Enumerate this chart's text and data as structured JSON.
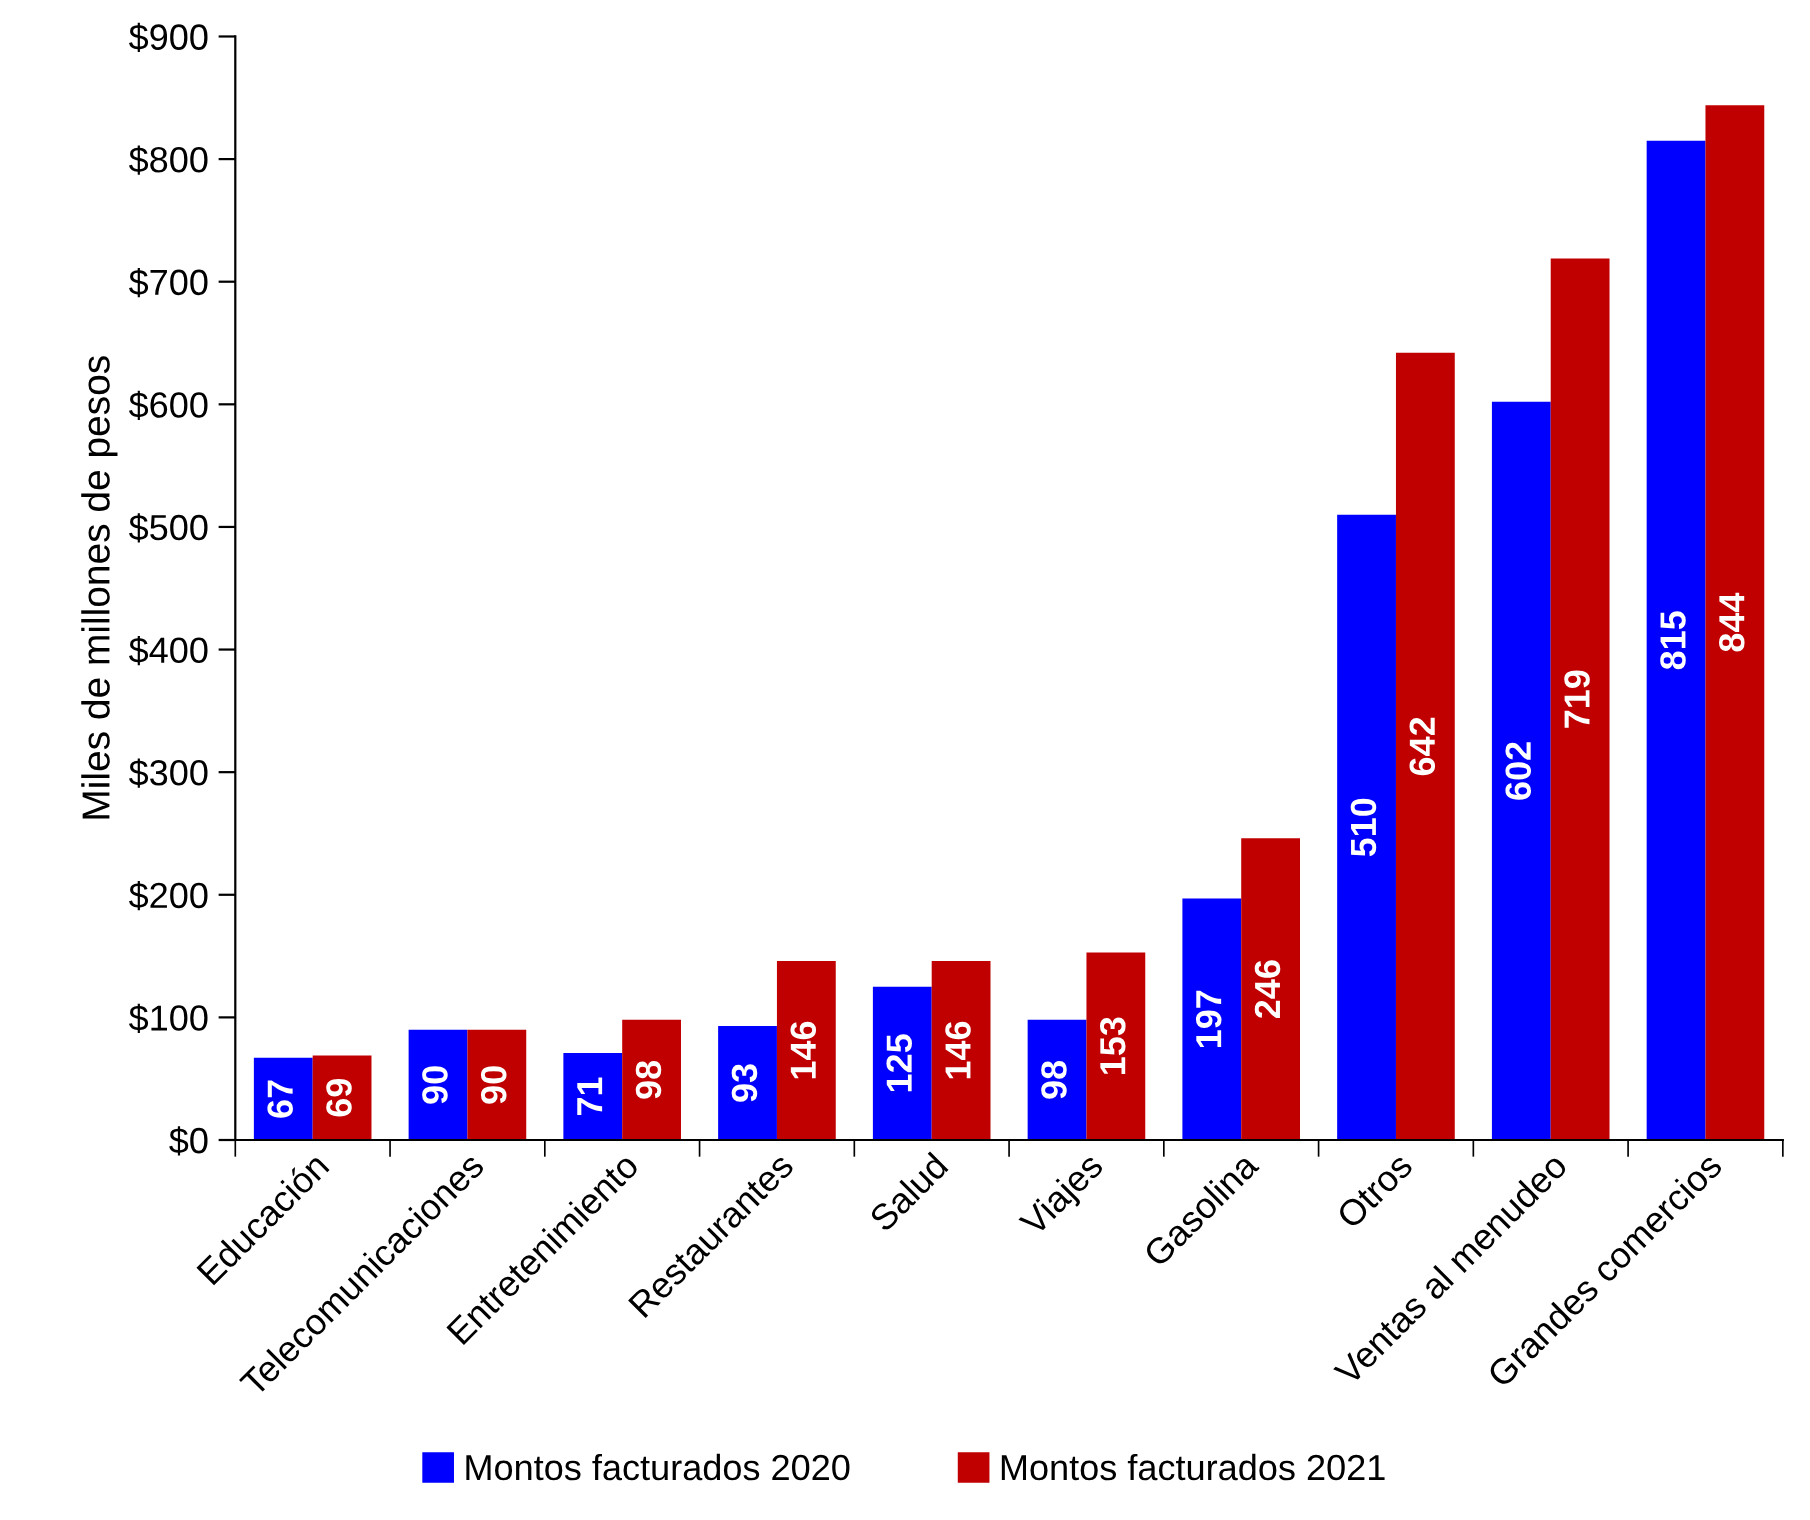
{
  "chart_data": {
    "type": "bar",
    "ylabel": "Miles de millones de pesos",
    "categories": [
      "Educación",
      "Telecomunicaciones",
      "Entretenimiento",
      "Restaurantes",
      "Salud",
      "Viajes",
      "Gasolina",
      "Otros",
      "Ventas al menudeo",
      "Grandes comercios"
    ],
    "series": [
      {
        "name": "Montos facturados 2020",
        "color": "#0000ff",
        "values": [
          67,
          90,
          71,
          93,
          125,
          98,
          197,
          510,
          602,
          815
        ]
      },
      {
        "name": "Montos facturados 2021",
        "color": "#c00000",
        "values": [
          69,
          90,
          98,
          146,
          146,
          153,
          246,
          642,
          719,
          844
        ]
      }
    ],
    "ylim": [
      0,
      900
    ],
    "yticks": [
      {
        "value": 0,
        "label": "$0"
      },
      {
        "value": 100,
        "label": "$100"
      },
      {
        "value": 200,
        "label": "$200"
      },
      {
        "value": 300,
        "label": "$300"
      },
      {
        "value": 400,
        "label": "$400"
      },
      {
        "value": 500,
        "label": "$500"
      },
      {
        "value": 600,
        "label": "$600"
      },
      {
        "value": 700,
        "label": "$700"
      },
      {
        "value": 800,
        "label": "$800"
      },
      {
        "value": 900,
        "label": "$900"
      }
    ],
    "data_labels": true,
    "grid": false,
    "legend": "bottom"
  }
}
